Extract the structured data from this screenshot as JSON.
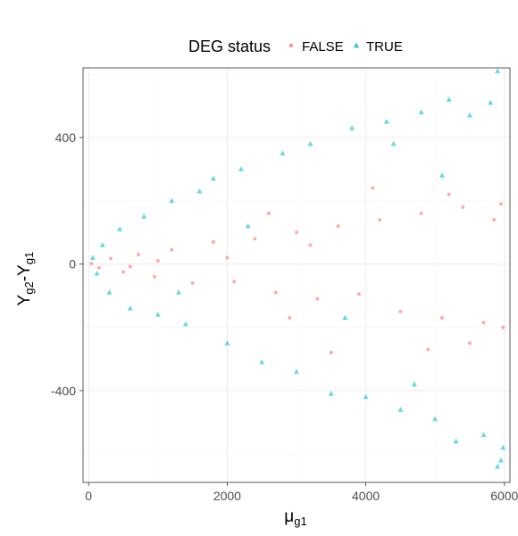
{
  "chart_data": {
    "type": "scatter",
    "title": "",
    "legend": {
      "title": "DEG status",
      "placement": "top",
      "entries": [
        {
          "label": "FALSE",
          "shape": "circle",
          "color": "#F8766D"
        },
        {
          "label": "TRUE",
          "shape": "triangle",
          "color": "#00BFC4"
        }
      ]
    },
    "x_axis": {
      "label_main": "μ",
      "label_sub": "g1",
      "ticks": [
        "0",
        "2000",
        "4000",
        "6000"
      ],
      "tick_values": [
        0,
        2000,
        4000,
        6000
      ],
      "range": [
        -80,
        6080
      ]
    },
    "y_axis": {
      "label_parts": [
        {
          "text": "Y",
          "sub": false
        },
        {
          "text": "g2",
          "sub": true
        },
        {
          "text": "-Y",
          "sub": false
        },
        {
          "text": "g1",
          "sub": true
        }
      ],
      "ticks": [
        "-400",
        "0",
        "400"
      ],
      "tick_values": [
        -400,
        0,
        400
      ],
      "range": [
        -690,
        620
      ]
    },
    "grid": true,
    "colors": {
      "false_series": "#F8766D",
      "true_series": "#00BFC4",
      "panel_border": "#333333",
      "grid_major": "#ebebeb",
      "grid_minor": "#f5f5f5"
    },
    "series": [
      {
        "name": "FALSE",
        "shape": "circle",
        "color": "#F8766D",
        "points": [
          [
            40,
            2
          ],
          [
            150,
            -12
          ],
          [
            320,
            18
          ],
          [
            500,
            -25
          ],
          [
            720,
            30
          ],
          [
            950,
            -40
          ],
          [
            1200,
            45
          ],
          [
            1500,
            -60
          ],
          [
            1800,
            70
          ],
          [
            2100,
            -55
          ],
          [
            2400,
            80
          ],
          [
            2700,
            -90
          ],
          [
            3000,
            100
          ],
          [
            3300,
            -110
          ],
          [
            3600,
            120
          ],
          [
            3900,
            -95
          ],
          [
            4200,
            140
          ],
          [
            4500,
            -150
          ],
          [
            4800,
            160
          ],
          [
            5100,
            -170
          ],
          [
            5400,
            180
          ],
          [
            5700,
            -185
          ],
          [
            5950,
            190
          ],
          [
            5980,
            -200
          ],
          [
            3500,
            -280
          ],
          [
            4100,
            240
          ],
          [
            4900,
            -270
          ],
          [
            5200,
            220
          ],
          [
            5500,
            -250
          ],
          [
            5850,
            140
          ],
          [
            2600,
            160
          ],
          [
            2900,
            -170
          ],
          [
            3200,
            60
          ],
          [
            1000,
            10
          ],
          [
            600,
            -8
          ],
          [
            2000,
            20
          ]
        ]
      },
      {
        "name": "TRUE",
        "shape": "triangle",
        "color": "#00BFC4",
        "points": [
          [
            60,
            20
          ],
          [
            120,
            -30
          ],
          [
            200,
            60
          ],
          [
            300,
            -90
          ],
          [
            450,
            110
          ],
          [
            600,
            -140
          ],
          [
            800,
            150
          ],
          [
            1000,
            -160
          ],
          [
            1200,
            200
          ],
          [
            1400,
            -190
          ],
          [
            1600,
            230
          ],
          [
            1800,
            270
          ],
          [
            2000,
            -250
          ],
          [
            2200,
            300
          ],
          [
            2500,
            -310
          ],
          [
            2800,
            350
          ],
          [
            3000,
            -340
          ],
          [
            3200,
            380
          ],
          [
            3500,
            -410
          ],
          [
            3800,
            430
          ],
          [
            4000,
            -420
          ],
          [
            4300,
            450
          ],
          [
            4500,
            -460
          ],
          [
            4800,
            480
          ],
          [
            5000,
            -490
          ],
          [
            5200,
            520
          ],
          [
            5300,
            -560
          ],
          [
            5500,
            470
          ],
          [
            5700,
            -540
          ],
          [
            5800,
            510
          ],
          [
            5900,
            610
          ],
          [
            5950,
            -620
          ],
          [
            5900,
            -640
          ],
          [
            5980,
            -580
          ],
          [
            4400,
            380
          ],
          [
            4700,
            -380
          ],
          [
            1300,
            -90
          ],
          [
            2300,
            120
          ],
          [
            3700,
            -170
          ],
          [
            5100,
            280
          ]
        ]
      }
    ]
  }
}
